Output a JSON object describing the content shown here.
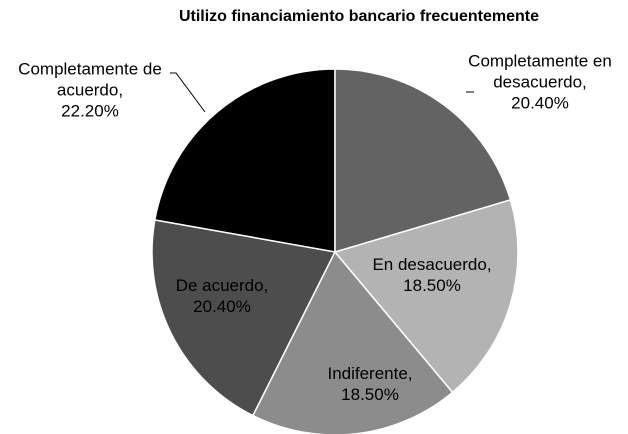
{
  "chart_data": {
    "type": "pie",
    "title": "Utilizo financiamiento bancario frecuentemente",
    "categories": [
      "Completamente en desacuerdo,",
      "En desacuerdo,",
      "Indiferente,",
      "De acuerdo,",
      "Completamente de acuerdo,"
    ],
    "values": [
      20.4,
      18.5,
      18.5,
      20.4,
      22.2
    ],
    "value_labels": [
      "20.40%",
      "18.50%",
      "18.50%",
      "20.40%",
      "22.20%"
    ],
    "colors": [
      "#636363",
      "#b3b3b3",
      "#8c8c8c",
      "#4d4d4d",
      "#000000"
    ]
  }
}
